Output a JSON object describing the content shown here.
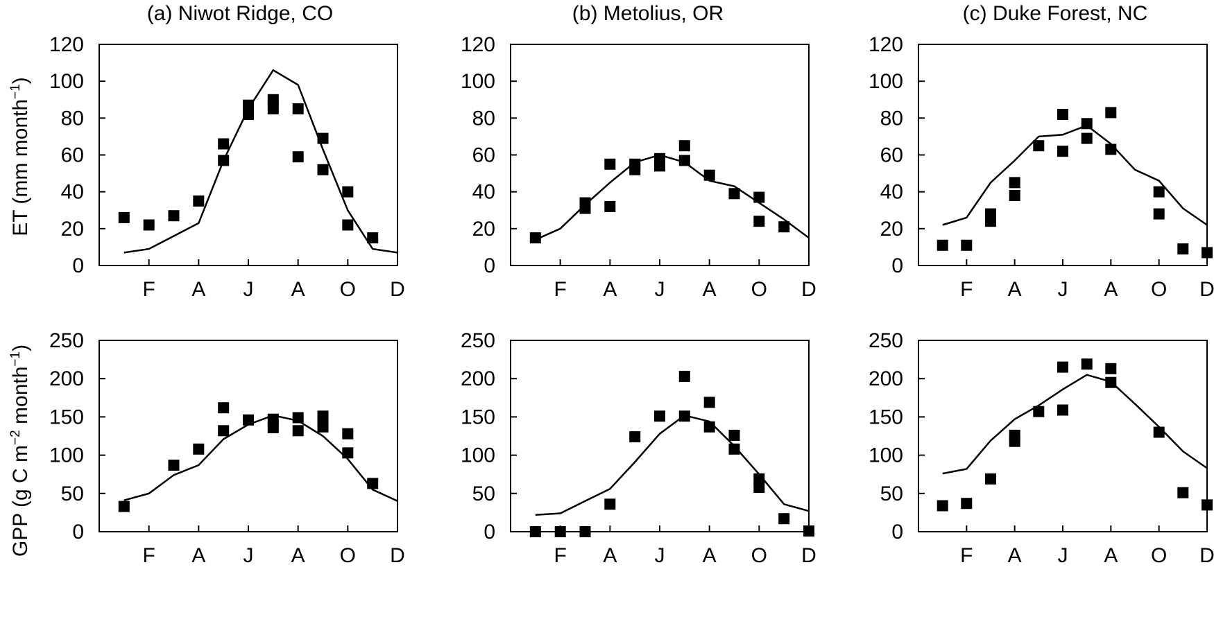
{
  "titles": [
    "(a) Niwot Ridge, CO",
    "(b) Metolius, OR",
    "(c) Duke Forest, NC"
  ],
  "ylabels": {
    "et": [
      "ET (mm month",
      "−1",
      ")"
    ],
    "gpp": [
      "GPP (g C m",
      "−2",
      " month",
      "−1",
      ")"
    ]
  },
  "chart_data": [
    {
      "type": "line+scatter",
      "id": "et-a",
      "title": "(a) Niwot Ridge, CO",
      "ylabel": "ET (mm month−1)",
      "ylim": [
        0,
        120
      ],
      "yticks": [
        0,
        20,
        40,
        60,
        80,
        100,
        120
      ],
      "xlim": [
        0,
        12
      ],
      "xticks": [
        {
          "x": 2,
          "label": "F"
        },
        {
          "x": 4,
          "label": "A"
        },
        {
          "x": 6,
          "label": "J"
        },
        {
          "x": 8,
          "label": "A"
        },
        {
          "x": 10,
          "label": "O"
        },
        {
          "x": 12,
          "label": "D"
        }
      ],
      "model": [
        [
          1,
          7
        ],
        [
          2,
          9
        ],
        [
          3,
          16
        ],
        [
          4,
          23
        ],
        [
          5,
          57
        ],
        [
          6,
          85
        ],
        [
          7,
          106
        ],
        [
          8,
          98
        ],
        [
          9,
          63
        ],
        [
          10,
          30
        ],
        [
          11,
          9
        ],
        [
          12,
          7
        ]
      ],
      "observed": [
        [
          1,
          26
        ],
        [
          2,
          22
        ],
        [
          3,
          27
        ],
        [
          4,
          35
        ],
        [
          5,
          57
        ],
        [
          5,
          66
        ],
        [
          6,
          82
        ],
        [
          6,
          86
        ],
        [
          6,
          87
        ],
        [
          7,
          85
        ],
        [
          7,
          90
        ],
        [
          8,
          85
        ],
        [
          8,
          59
        ],
        [
          9,
          52
        ],
        [
          9,
          69
        ],
        [
          10,
          40
        ],
        [
          10,
          22
        ],
        [
          11,
          15
        ]
      ]
    },
    {
      "type": "line+scatter",
      "id": "et-b",
      "title": "(b) Metolius, OR",
      "ylabel": "",
      "ylim": [
        0,
        120
      ],
      "yticks": [
        0,
        20,
        40,
        60,
        80,
        100,
        120
      ],
      "xlim": [
        0,
        12
      ],
      "xticks": [
        {
          "x": 2,
          "label": "F"
        },
        {
          "x": 4,
          "label": "A"
        },
        {
          "x": 6,
          "label": "J"
        },
        {
          "x": 8,
          "label": "A"
        },
        {
          "x": 10,
          "label": "O"
        },
        {
          "x": 12,
          "label": "D"
        }
      ],
      "model": [
        [
          1,
          14
        ],
        [
          2,
          20
        ],
        [
          3,
          33
        ],
        [
          4,
          45
        ],
        [
          5,
          56
        ],
        [
          6,
          60
        ],
        [
          7,
          56
        ],
        [
          8,
          46
        ],
        [
          9,
          43
        ],
        [
          10,
          34
        ],
        [
          11,
          25
        ],
        [
          12,
          15
        ]
      ],
      "observed": [
        [
          1,
          15
        ],
        [
          3,
          31
        ],
        [
          3,
          34
        ],
        [
          4,
          32
        ],
        [
          4,
          55
        ],
        [
          5,
          52
        ],
        [
          5,
          55
        ],
        [
          6,
          54
        ],
        [
          6,
          58
        ],
        [
          7,
          57
        ],
        [
          7,
          65
        ],
        [
          8,
          49
        ],
        [
          9,
          39
        ],
        [
          10,
          37
        ],
        [
          10,
          24
        ],
        [
          11,
          21
        ]
      ]
    },
    {
      "type": "line+scatter",
      "id": "et-c",
      "title": "(c) Duke Forest, NC",
      "ylabel": "",
      "ylim": [
        0,
        120
      ],
      "yticks": [
        0,
        20,
        40,
        60,
        80,
        100,
        120
      ],
      "xlim": [
        0,
        12
      ],
      "xticks": [
        {
          "x": 2,
          "label": "F"
        },
        {
          "x": 4,
          "label": "A"
        },
        {
          "x": 6,
          "label": "J"
        },
        {
          "x": 8,
          "label": "A"
        },
        {
          "x": 10,
          "label": "O"
        },
        {
          "x": 12,
          "label": "D"
        }
      ],
      "model": [
        [
          1,
          22
        ],
        [
          2,
          26
        ],
        [
          3,
          45
        ],
        [
          4,
          57
        ],
        [
          5,
          70
        ],
        [
          6,
          71
        ],
        [
          7,
          76
        ],
        [
          8,
          66
        ],
        [
          9,
          52
        ],
        [
          10,
          46
        ],
        [
          11,
          31
        ],
        [
          12,
          22
        ]
      ],
      "observed": [
        [
          1,
          11
        ],
        [
          2,
          11
        ],
        [
          3,
          24
        ],
        [
          3,
          28
        ],
        [
          4,
          38
        ],
        [
          4,
          45
        ],
        [
          5,
          65
        ],
        [
          6,
          62
        ],
        [
          6,
          82
        ],
        [
          7,
          69
        ],
        [
          7,
          77
        ],
        [
          8,
          63
        ],
        [
          8,
          83
        ],
        [
          10,
          40
        ],
        [
          10,
          28
        ],
        [
          11,
          9
        ],
        [
          12,
          7
        ]
      ]
    },
    {
      "type": "line+scatter",
      "id": "gpp-a",
      "title": "",
      "ylabel": "GPP (g C m−2 month−1)",
      "ylim": [
        0,
        250
      ],
      "yticks": [
        0,
        50,
        100,
        150,
        200,
        250
      ],
      "xlim": [
        0,
        12
      ],
      "xticks": [
        {
          "x": 2,
          "label": "F"
        },
        {
          "x": 4,
          "label": "A"
        },
        {
          "x": 6,
          "label": "J"
        },
        {
          "x": 8,
          "label": "A"
        },
        {
          "x": 10,
          "label": "O"
        },
        {
          "x": 12,
          "label": "D"
        }
      ],
      "model": [
        [
          1,
          41
        ],
        [
          2,
          50
        ],
        [
          3,
          74
        ],
        [
          4,
          87
        ],
        [
          5,
          121
        ],
        [
          6,
          140
        ],
        [
          7,
          152
        ],
        [
          8,
          145
        ],
        [
          9,
          125
        ],
        [
          10,
          95
        ],
        [
          11,
          55
        ],
        [
          12,
          40
        ]
      ],
      "observed": [
        [
          1,
          33
        ],
        [
          3,
          87
        ],
        [
          4,
          108
        ],
        [
          5,
          132
        ],
        [
          5,
          162
        ],
        [
          6,
          146
        ],
        [
          7,
          136
        ],
        [
          7,
          147
        ],
        [
          8,
          132
        ],
        [
          8,
          149
        ],
        [
          9,
          137
        ],
        [
          9,
          151
        ],
        [
          10,
          128
        ],
        [
          10,
          103
        ],
        [
          11,
          63
        ]
      ]
    },
    {
      "type": "line+scatter",
      "id": "gpp-b",
      "title": "",
      "ylabel": "",
      "ylim": [
        0,
        250
      ],
      "yticks": [
        0,
        50,
        100,
        150,
        200,
        250
      ],
      "xlim": [
        0,
        12
      ],
      "xticks": [
        {
          "x": 2,
          "label": "F"
        },
        {
          "x": 4,
          "label": "A"
        },
        {
          "x": 6,
          "label": "J"
        },
        {
          "x": 8,
          "label": "A"
        },
        {
          "x": 10,
          "label": "O"
        },
        {
          "x": 12,
          "label": "D"
        }
      ],
      "model": [
        [
          1,
          22
        ],
        [
          2,
          24
        ],
        [
          3,
          40
        ],
        [
          4,
          56
        ],
        [
          5,
          91
        ],
        [
          6,
          128
        ],
        [
          7,
          152
        ],
        [
          8,
          144
        ],
        [
          9,
          112
        ],
        [
          10,
          75
        ],
        [
          11,
          36
        ],
        [
          12,
          27
        ]
      ],
      "observed": [
        [
          1,
          0
        ],
        [
          2,
          0
        ],
        [
          3,
          0
        ],
        [
          4,
          36
        ],
        [
          5,
          124
        ],
        [
          6,
          151
        ],
        [
          7,
          151
        ],
        [
          7,
          203
        ],
        [
          8,
          169
        ],
        [
          8,
          137
        ],
        [
          9,
          108
        ],
        [
          9,
          126
        ],
        [
          10,
          58
        ],
        [
          10,
          69
        ],
        [
          11,
          17
        ],
        [
          12,
          1
        ]
      ]
    },
    {
      "type": "line+scatter",
      "id": "gpp-c",
      "title": "",
      "ylabel": "",
      "ylim": [
        0,
        250
      ],
      "yticks": [
        0,
        50,
        100,
        150,
        200,
        250
      ],
      "xlim": [
        0,
        12
      ],
      "xticks": [
        {
          "x": 2,
          "label": "F"
        },
        {
          "x": 4,
          "label": "A"
        },
        {
          "x": 6,
          "label": "J"
        },
        {
          "x": 8,
          "label": "A"
        },
        {
          "x": 10,
          "label": "O"
        },
        {
          "x": 12,
          "label": "D"
        }
      ],
      "model": [
        [
          1,
          76
        ],
        [
          2,
          82
        ],
        [
          3,
          119
        ],
        [
          4,
          147
        ],
        [
          5,
          165
        ],
        [
          6,
          186
        ],
        [
          7,
          205
        ],
        [
          8,
          196
        ],
        [
          9,
          167
        ],
        [
          10,
          137
        ],
        [
          11,
          105
        ],
        [
          12,
          83
        ]
      ],
      "observed": [
        [
          1,
          34
        ],
        [
          2,
          37
        ],
        [
          3,
          69
        ],
        [
          4,
          118
        ],
        [
          4,
          126
        ],
        [
          5,
          157
        ],
        [
          6,
          159
        ],
        [
          6,
          215
        ],
        [
          7,
          219
        ],
        [
          8,
          195
        ],
        [
          8,
          213
        ],
        [
          10,
          130
        ],
        [
          11,
          51
        ],
        [
          12,
          35
        ]
      ]
    }
  ]
}
